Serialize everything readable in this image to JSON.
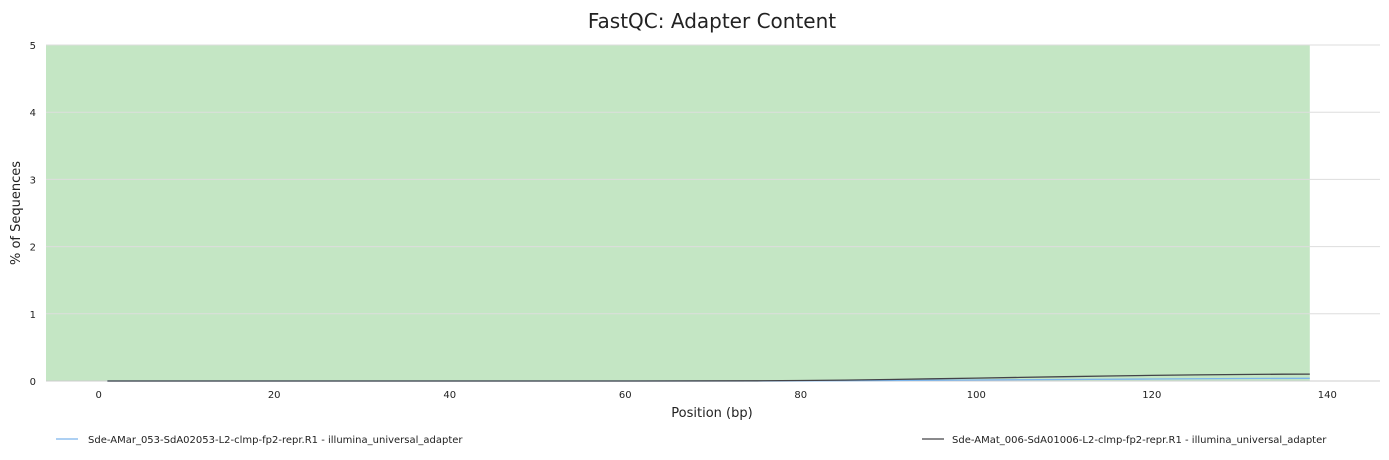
{
  "chart_data": {
    "type": "line",
    "title": "FastQC: Adapter Content",
    "xlabel": "Position (bp)",
    "ylabel": "% of Sequences",
    "xlim": [
      -6,
      146
    ],
    "ylim": [
      0,
      5
    ],
    "x_ticks": [
      0,
      20,
      40,
      60,
      80,
      100,
      120,
      140
    ],
    "y_ticks": [
      0,
      1,
      2,
      3,
      4,
      5
    ],
    "pass_band": {
      "x": [
        -6,
        138
      ],
      "y": [
        0,
        5
      ],
      "color": "#c4e6c4"
    },
    "grid": true,
    "legend_position": "bottom",
    "series": [
      {
        "name": "Sde-AMar_053-SdA02053-L2-clmp-fp2-repr.R1 - illumina_universal_adapter",
        "color": "#7cb5ec",
        "x": [
          1,
          20,
          40,
          60,
          75,
          80,
          90,
          100,
          110,
          120,
          130,
          138
        ],
        "y": [
          0,
          0,
          0,
          0,
          0,
          0.003,
          0.008,
          0.015,
          0.022,
          0.03,
          0.037,
          0.04
        ]
      },
      {
        "name": "Sde-AMat_006-SdA01006-L2-clmp-fp2-repr.R1 - illumina_universal_adapter",
        "color": "#434348",
        "x": [
          1,
          20,
          40,
          60,
          75,
          80,
          85,
          90,
          95,
          100,
          105,
          110,
          115,
          120,
          125,
          130,
          135,
          138
        ],
        "y": [
          0,
          0,
          0,
          0,
          0.003,
          0.008,
          0.014,
          0.022,
          0.032,
          0.043,
          0.053,
          0.064,
          0.074,
          0.083,
          0.091,
          0.097,
          0.101,
          0.102
        ]
      }
    ]
  }
}
